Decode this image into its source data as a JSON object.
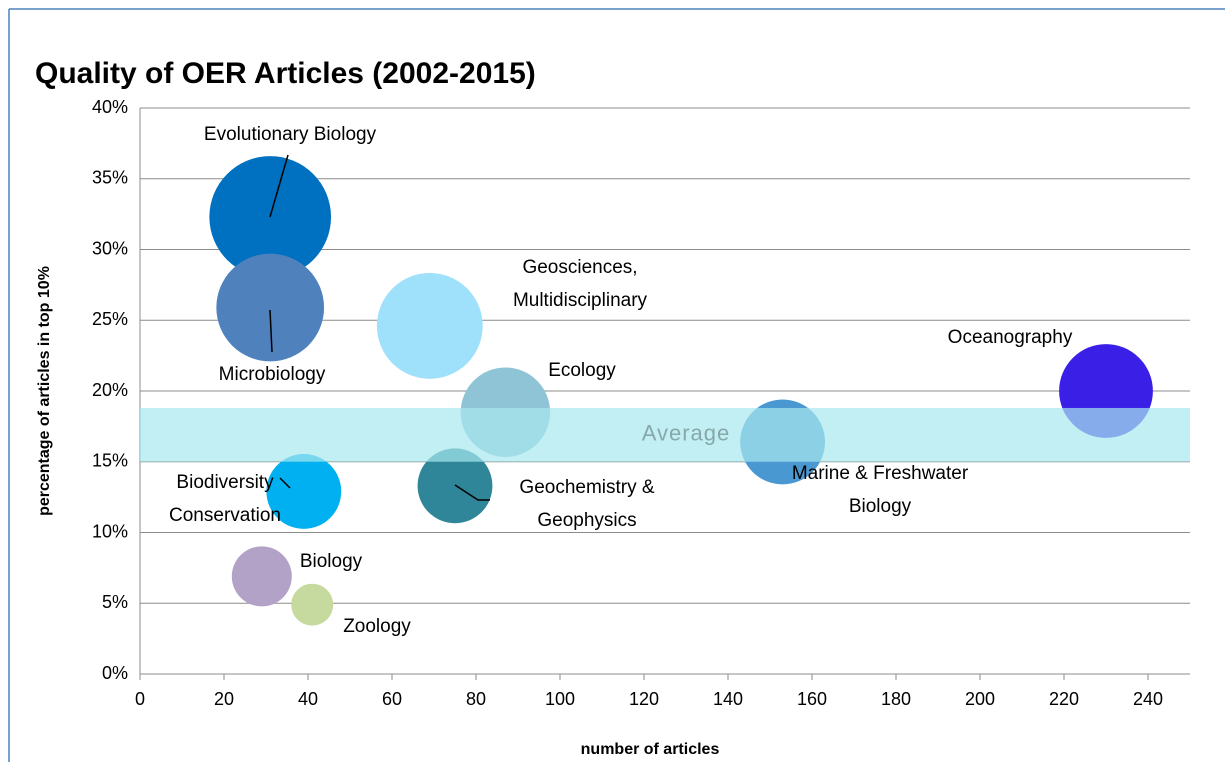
{
  "chart_data": {
    "type": "bubble",
    "title": "Quality of OER Articles (2002-2015)",
    "xlabel": "number of articles",
    "ylabel": "percentage of articles in top 10%",
    "xlim": [
      0,
      250
    ],
    "xticks": [
      0,
      20,
      40,
      60,
      80,
      100,
      120,
      140,
      160,
      180,
      200,
      220,
      240
    ],
    "ylim": [
      0,
      40
    ],
    "yticks": [
      {
        "value": 0,
        "label": "0%"
      },
      {
        "value": 5,
        "label": "5%"
      },
      {
        "value": 10,
        "label": "10%"
      },
      {
        "value": 15,
        "label": "15%"
      },
      {
        "value": 20,
        "label": "20%"
      },
      {
        "value": 25,
        "label": "25%"
      },
      {
        "value": 30,
        "label": "30%"
      },
      {
        "value": 35,
        "label": "35%"
      },
      {
        "value": 40,
        "label": "40%"
      }
    ],
    "grid": true,
    "average_band": {
      "label": "Average",
      "range": [
        15,
        18.8
      ],
      "color": "#a8e8ee"
    },
    "series": [
      {
        "name": "Evolutionary Biology",
        "color": "#0070c0",
        "x": 31,
        "y": 32.3,
        "size": 37
      },
      {
        "name": "Microbiology",
        "color": "#4f81bd",
        "x": 31,
        "y": 25.9,
        "size": 29
      },
      {
        "name": "Geosciences, Multidisciplinary",
        "color": "#9fe0fb",
        "x": 69,
        "y": 24.6,
        "size": 28
      },
      {
        "name": "Ecology",
        "color": "#8ec4d6",
        "x": 87,
        "y": 18.5,
        "size": 20
      },
      {
        "name": "Oceanography",
        "color": "#3a20e6",
        "x": 230,
        "y": 20,
        "size": 22
      },
      {
        "name": "Marine & Freshwater Biology",
        "color": "#4a98d2",
        "x": 153,
        "y": 16.4,
        "size": 18
      },
      {
        "name": "Geochemistry & Geophysics",
        "color": "#2e8698",
        "x": 75,
        "y": 13.3,
        "size": 14
      },
      {
        "name": "Biodiversity Conservation",
        "color": "#00b0f0",
        "x": 39,
        "y": 12.9,
        "size": 14
      },
      {
        "name": "Biology",
        "color": "#b2a2c8",
        "x": 29,
        "y": 6.9,
        "size": 9
      },
      {
        "name": "Zoology",
        "color": "#c6d99e",
        "x": 41,
        "y": 4.9,
        "size": 4.4
      }
    ]
  }
}
